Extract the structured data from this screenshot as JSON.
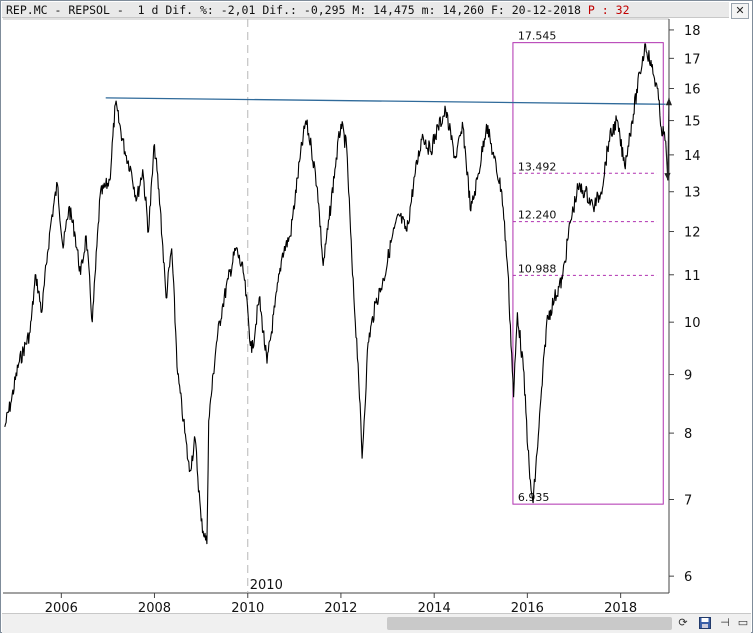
{
  "header": {
    "ticker": "REP.MC",
    "sep1": "-",
    "name": "REPSOL",
    "sep2": "-",
    "period": "1 d",
    "dif_pct_label": "Dif. %:",
    "dif_pct": "-2,01",
    "dif_label": "Dif.:",
    "dif": "-0,295",
    "max_label": "M:",
    "max": "14,475",
    "min_label": "m:",
    "min": "14,260",
    "date_label": "F:",
    "date": "20-12-2018",
    "p_label": "P :",
    "p_value": "32",
    "close_label": "✕"
  },
  "colors": {
    "price": "#000000",
    "trendline": "#2f6a9a",
    "fib": "#b030b0",
    "p_indicator": "#c00000",
    "arrow": "#222222"
  },
  "chart_data": {
    "type": "line",
    "title": "REP.MC - REPSOL",
    "y_scale": "log",
    "ylim": [
      5.8,
      18.4
    ],
    "xlim": [
      "2004-10-01",
      "2019-01-15"
    ],
    "y_ticks": [
      6,
      7,
      8,
      9,
      10,
      11,
      12,
      13,
      14,
      15,
      16,
      17,
      18
    ],
    "x_ticks": [
      "2006",
      "2008",
      "2010",
      "2012",
      "2014",
      "2016",
      "2018"
    ],
    "x_tick_dates": [
      "2006-01-01",
      "2008-01-01",
      "2010-01-01",
      "2012-01-01",
      "2014-01-01",
      "2016-01-01",
      "2018-01-01"
    ],
    "vertical_marker": {
      "label": "2010",
      "date": "2010-01-01"
    },
    "grid": false,
    "series": [
      {
        "x": [
          "2004-10-15",
          "2004-12-01",
          "2005-02-01",
          "2005-05-01",
          "2005-06-15",
          "2005-08-01",
          "2005-09-15",
          "2005-10-15",
          "2005-12-01",
          "2006-01-15",
          "2006-03-01",
          "2006-04-15",
          "2006-06-01",
          "2006-07-15",
          "2006-09-01",
          "2006-11-01",
          "2007-01-15",
          "2007-03-01",
          "2007-05-15",
          "2007-07-01",
          "2007-08-15",
          "2007-10-01",
          "2007-11-15",
          "2008-01-01",
          "2008-02-15",
          "2008-04-01",
          "2008-05-15",
          "2008-07-01",
          "2008-08-15",
          "2008-10-01",
          "2008-11-15",
          "2009-01-01",
          "2009-02-15",
          "2009-03-01",
          "2009-05-01",
          "2009-06-15",
          "2009-08-01",
          "2009-10-01",
          "2009-12-01",
          "2010-02-01",
          "2010-04-01",
          "2010-06-01",
          "2010-08-01",
          "2010-10-01",
          "2010-12-01",
          "2011-02-15",
          "2011-04-01",
          "2011-05-15",
          "2011-07-01",
          "2011-08-15",
          "2011-10-01",
          "2011-11-15",
          "2012-01-01",
          "2012-02-15",
          "2012-04-01",
          "2012-05-15",
          "2012-06-15",
          "2012-08-01",
          "2012-10-01",
          "2012-12-01",
          "2013-02-01",
          "2013-04-01",
          "2013-06-01",
          "2013-08-01",
          "2013-10-01",
          "2013-12-01",
          "2014-02-01",
          "2014-04-01",
          "2014-06-15",
          "2014-08-15",
          "2014-10-15",
          "2014-12-15",
          "2015-02-15",
          "2015-04-15",
          "2015-06-15",
          "2015-08-01",
          "2015-09-15",
          "2015-10-15",
          "2015-12-01",
          "2016-01-20",
          "2016-02-15",
          "2016-04-01",
          "2016-06-01",
          "2016-08-01",
          "2016-10-01",
          "2016-12-01",
          "2017-02-01",
          "2017-04-01",
          "2017-06-01",
          "2017-08-01",
          "2017-10-01",
          "2017-12-01",
          "2018-02-01",
          "2018-04-01",
          "2018-06-01",
          "2018-07-15",
          "2018-09-01",
          "2018-10-15",
          "2018-11-15",
          "2018-12-20"
        ],
        "values": [
          8.1,
          8.5,
          9.2,
          9.8,
          11.0,
          10.2,
          11.5,
          12.3,
          13.2,
          11.6,
          12.6,
          12.0,
          11.0,
          11.9,
          10.0,
          12.9,
          13.3,
          15.5,
          14.1,
          13.6,
          12.8,
          13.6,
          12.0,
          14.3,
          12.6,
          10.5,
          11.6,
          9.0,
          8.2,
          7.4,
          7.9,
          6.7,
          6.4,
          8.2,
          9.6,
          10.3,
          10.9,
          11.6,
          11.0,
          9.4,
          10.5,
          9.2,
          10.3,
          11.5,
          11.9,
          13.9,
          15.0,
          14.2,
          13.1,
          11.2,
          12.3,
          13.6,
          14.9,
          14.2,
          11.0,
          9.2,
          7.6,
          9.6,
          10.4,
          10.9,
          11.8,
          12.4,
          12.0,
          13.4,
          14.6,
          14.1,
          14.8,
          15.3,
          13.9,
          14.8,
          12.5,
          13.5,
          14.9,
          13.9,
          13.0,
          11.1,
          8.6,
          10.2,
          9.1,
          7.3,
          6.95,
          8.1,
          10.0,
          10.5,
          10.9,
          12.2,
          13.1,
          13.0,
          12.6,
          13.0,
          14.4,
          15.0,
          13.7,
          15.0,
          16.5,
          17.5,
          16.7,
          16.0,
          14.8,
          14.4
        ]
      }
    ],
    "trendline": {
      "x": [
        "2006-12-15",
        "2018-12-20"
      ],
      "y": [
        15.7,
        15.5
      ]
    },
    "fib_box": {
      "x_start": "2015-09-10",
      "x_end": "2018-12-01",
      "low": 6.935,
      "high": 17.545
    },
    "fib_levels": [
      {
        "label": "17.545",
        "value": 17.545
      },
      {
        "label": "13.492",
        "value": 13.492
      },
      {
        "label": "12.240",
        "value": 12.24
      },
      {
        "label": "10.988",
        "value": 10.988
      },
      {
        "label": "6.935",
        "value": 6.935
      }
    ],
    "projection_arrows": [
      {
        "from_x": "2018-12-20",
        "from_y": 14.4,
        "to_x": "2019-01-06",
        "to_y": 13.3
      },
      {
        "from_x": "2019-01-06",
        "from_y": 13.3,
        "to_x": "2019-01-15",
        "to_y": 15.7
      }
    ]
  }
}
